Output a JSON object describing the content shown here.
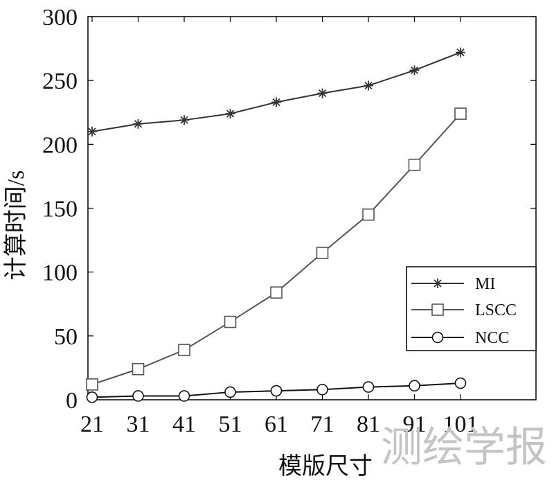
{
  "chart_data": {
    "type": "line",
    "xlabel": "模版尺寸",
    "ylabel": "计算时间/s",
    "x": [
      21,
      31,
      41,
      51,
      61,
      71,
      81,
      91,
      101
    ],
    "x_ticks": [
      "21",
      "31",
      "41",
      "51",
      "61",
      "71",
      "81",
      "91",
      "101"
    ],
    "ylim": [
      0,
      300
    ],
    "y_ticks": [
      "0",
      "50",
      "100",
      "150",
      "200",
      "250",
      "300"
    ],
    "grid": false,
    "legend_position": "right",
    "series": [
      {
        "name": "MI",
        "marker": "asterisk",
        "color": "#333333",
        "values": [
          210,
          216,
          219,
          224,
          233,
          240,
          246,
          258,
          272
        ]
      },
      {
        "name": "LSCC",
        "marker": "square",
        "color": "#555555",
        "values": [
          12,
          24,
          39,
          61,
          84,
          115,
          145,
          184,
          224
        ]
      },
      {
        "name": "NCC",
        "marker": "circle",
        "color": "#111111",
        "values": [
          2,
          3,
          3,
          6,
          7,
          8,
          10,
          11,
          13
        ]
      }
    ]
  },
  "watermark": "测绘学报"
}
